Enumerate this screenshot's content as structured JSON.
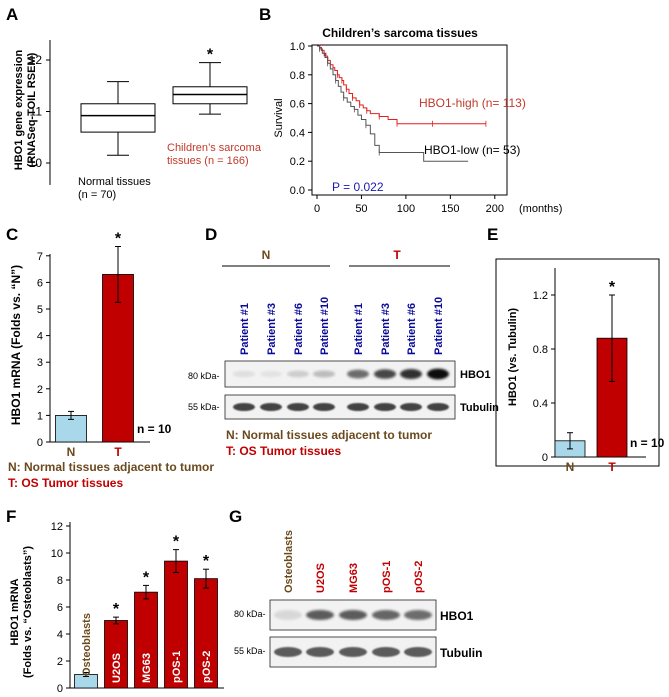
{
  "colors": {
    "red": "#c00000",
    "red_text": "#c0392b",
    "blue_bar": "#a8d8ea",
    "brown": "#6b4a1e",
    "navy": "#0a0a9a",
    "km_red": "#e02020",
    "km_gray": "#555555"
  },
  "panels": {
    "A": {
      "label": "A",
      "ylabel_line1": "HBO1 gene expression",
      "ylabel_line2": "(RNASeq-TOIL RSEM)",
      "yticks": [
        "12",
        "11",
        "10"
      ],
      "normal_label_line1": "Normal tissues",
      "normal_label_line2": "(n = 70)",
      "sarcoma_label_line1": "Children’s sarcoma",
      "sarcoma_label_line2": "tissues (n = 166)",
      "star": "*"
    },
    "B": {
      "label": "B",
      "title": "Children’s sarcoma tissues",
      "ylabel": "Survival",
      "yticks": [
        "1.0",
        "0.8",
        "0.6",
        "0.4",
        "0.2",
        "0.0"
      ],
      "xticks": [
        "0",
        "50",
        "100",
        "150",
        "200"
      ],
      "xunit": "(months)",
      "high_label": "HBO1-high (n= 113)",
      "low_label": "HBO1-low (n= 53)",
      "pvalue": "P = 0.022"
    },
    "C": {
      "label": "C",
      "ylabel": "HBO1 mRNA (Folds vs. “N”)",
      "yticks": [
        "7",
        "6",
        "5",
        "4",
        "3",
        "2",
        "1",
        "0"
      ],
      "n_label": "n = 10",
      "star": "*",
      "legend_n": "N: Normal tissues adjacent to tumor",
      "legend_t": "T: OS Tumor tissues"
    },
    "D": {
      "label": "D",
      "group_n": "N",
      "group_t": "T",
      "lanes": [
        "Patient #1",
        "Patient #3",
        "Patient #6",
        "Patient #10",
        "Patient #1",
        "Patient #3",
        "Patient #6",
        "Patient #10"
      ],
      "kda_80": "80 kDa-",
      "kda_55": "55 kDa-",
      "band_hbo1": "HBO1",
      "band_tubulin": "Tubulin",
      "legend_n": "N: Normal tissues adjacent to tumor",
      "legend_t": "T: OS Tumor tissues"
    },
    "E": {
      "label": "E",
      "ylabel": "HBO1 (vs. Tubulin)",
      "yticks": [
        "1.2",
        "0.8",
        "0.4",
        "0"
      ],
      "n_label": "n = 10",
      "star": "*"
    },
    "F": {
      "label": "F",
      "ylabel_line1": "HBO1 mRNA",
      "ylabel_line2": "(Folds vs. “Osteoblasts”)",
      "yticks": [
        "12",
        "10",
        "8",
        "6",
        "4",
        "2",
        "0"
      ],
      "star": "*"
    },
    "G": {
      "label": "G",
      "lanes": [
        "Osteoblasts",
        "U2OS",
        "MG63",
        "pOS-1",
        "pOS-2"
      ],
      "kda_80": "80 kDa-",
      "kda_55": "55 kDa-",
      "band_hbo1": "HBO1",
      "band_tubulin": "Tubulin"
    }
  },
  "chart_data": [
    {
      "panel": "A",
      "type": "box",
      "categories": [
        "Normal tissues",
        "Children’s sarcoma tissues"
      ],
      "boxes": [
        {
          "name": "Normal tissues",
          "n": 70,
          "min": 10.15,
          "q1": 10.6,
          "median": 10.92,
          "q3": 11.15,
          "max": 11.58
        },
        {
          "name": "Children’s sarcoma tissues",
          "n": 166,
          "min": 10.95,
          "q1": 11.15,
          "median": 11.33,
          "q3": 11.48,
          "max": 11.95
        }
      ],
      "ylim": [
        9.9,
        12.3
      ],
      "ylabel": "HBO1 gene expression (RNASeq-TOIL RSEM)"
    },
    {
      "panel": "B",
      "type": "line",
      "title": "Children’s sarcoma tissues",
      "xlabel": "(months)",
      "ylabel": "Survival",
      "xlim": [
        0,
        200
      ],
      "ylim": [
        0,
        1
      ],
      "series": [
        {
          "name": "HBO1-high (n= 113)",
          "color": "#e02020",
          "x": [
            0,
            3,
            5,
            8,
            10,
            12,
            15,
            18,
            20,
            23,
            25,
            28,
            30,
            33,
            36,
            40,
            44,
            48,
            52,
            56,
            60,
            70,
            80,
            90,
            110,
            130,
            150,
            190
          ],
          "y": [
            1.0,
            0.99,
            0.97,
            0.95,
            0.93,
            0.9,
            0.87,
            0.85,
            0.83,
            0.8,
            0.78,
            0.76,
            0.73,
            0.7,
            0.67,
            0.64,
            0.62,
            0.59,
            0.57,
            0.55,
            0.53,
            0.51,
            0.49,
            0.46,
            0.46,
            0.46,
            0.46,
            0.46
          ]
        },
        {
          "name": "HBO1-low (n= 53)",
          "color": "#555555",
          "x": [
            0,
            3,
            6,
            9,
            12,
            15,
            18,
            21,
            24,
            27,
            30,
            34,
            38,
            42,
            46,
            50,
            55,
            60,
            65,
            70,
            120,
            170
          ],
          "y": [
            1.0,
            0.98,
            0.95,
            0.92,
            0.88,
            0.84,
            0.8,
            0.76,
            0.72,
            0.68,
            0.64,
            0.61,
            0.58,
            0.56,
            0.52,
            0.49,
            0.45,
            0.39,
            0.31,
            0.26,
            0.2,
            0.2
          ]
        }
      ],
      "annotation": "P = 0.022"
    },
    {
      "panel": "C",
      "type": "bar",
      "categories": [
        "N",
        "T"
      ],
      "values": [
        1.0,
        6.3
      ],
      "errors": [
        0.15,
        1.05
      ],
      "ylim": [
        0,
        7
      ],
      "ylabel": "HBO1 mRNA (Folds vs. “N”)",
      "significance": [
        "",
        "*"
      ]
    },
    {
      "panel": "E",
      "type": "bar",
      "categories": [
        "N",
        "T"
      ],
      "values": [
        0.12,
        0.88
      ],
      "errors": [
        0.06,
        0.32
      ],
      "ylim": [
        0,
        1.4
      ],
      "ylabel": "HBO1 (vs. Tubulin)",
      "significance": [
        "",
        "*"
      ]
    },
    {
      "panel": "F",
      "type": "bar",
      "categories": [
        "Osteoblasts",
        "U2OS",
        "MG63",
        "pOS-1",
        "pOS-2"
      ],
      "values": [
        1.0,
        5.0,
        7.1,
        9.4,
        8.1
      ],
      "errors": [
        0.15,
        0.25,
        0.5,
        0.85,
        0.7
      ],
      "ylim": [
        0,
        12
      ],
      "ylabel": "HBO1 mRNA (Folds vs. “Osteoblasts”)",
      "significance": [
        "",
        "*",
        "*",
        "*",
        "*"
      ]
    }
  ]
}
